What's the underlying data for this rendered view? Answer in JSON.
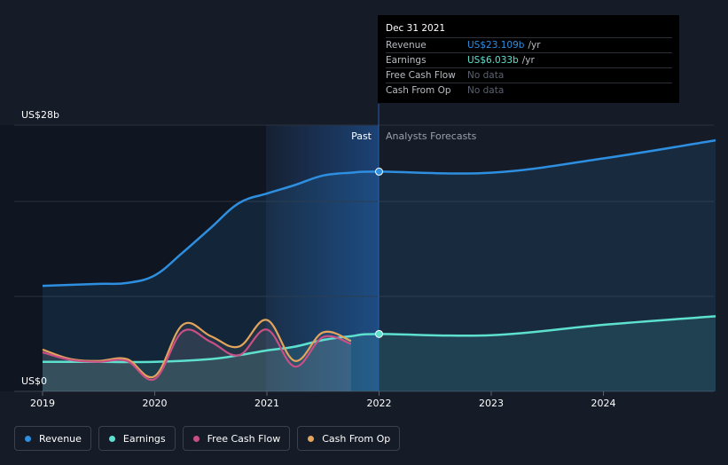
{
  "chart_data": {
    "type": "line",
    "y_unit_label_top": "US$28b",
    "y_unit_label_bottom": "US$0",
    "ylim": [
      0,
      28
    ],
    "x_ticks": [
      "2019",
      "2020",
      "2021",
      "2022",
      "2023",
      "2024"
    ],
    "past_label": "Past",
    "forecast_label": "Analysts Forecasts",
    "highlight_date": "Dec 31 2021",
    "series": [
      {
        "name": "Revenue",
        "color": "#2e8fe0",
        "forecast": true,
        "points": [
          [
            2019.0,
            11.1
          ],
          [
            2019.5,
            11.3
          ],
          [
            2019.75,
            11.4
          ],
          [
            2020.0,
            12.2
          ],
          [
            2020.25,
            14.6
          ],
          [
            2020.5,
            17.2
          ],
          [
            2020.75,
            19.8
          ],
          [
            2021.0,
            20.8
          ],
          [
            2021.25,
            21.7
          ],
          [
            2021.5,
            22.7
          ],
          [
            2021.75,
            23.0
          ],
          [
            2022.0,
            23.109
          ],
          [
            2023.0,
            23.0
          ],
          [
            2024.0,
            24.5
          ],
          [
            2025.0,
            26.4
          ]
        ]
      },
      {
        "name": "Earnings",
        "color": "#5ee0cf",
        "forecast": true,
        "points": [
          [
            2019.0,
            3.1
          ],
          [
            2019.5,
            3.1
          ],
          [
            2020.0,
            3.1
          ],
          [
            2020.5,
            3.4
          ],
          [
            2020.75,
            3.8
          ],
          [
            2021.0,
            4.3
          ],
          [
            2021.25,
            4.7
          ],
          [
            2021.5,
            5.4
          ],
          [
            2021.75,
            5.8
          ],
          [
            2022.0,
            6.033
          ],
          [
            2023.0,
            5.9
          ],
          [
            2024.0,
            7.0
          ],
          [
            2025.0,
            7.9
          ]
        ]
      },
      {
        "name": "Free Cash Flow",
        "color": "#c84f86",
        "forecast": false,
        "points": [
          [
            2019.0,
            4.1
          ],
          [
            2019.25,
            3.3
          ],
          [
            2019.5,
            3.1
          ],
          [
            2019.75,
            3.2
          ],
          [
            2020.0,
            1.3
          ],
          [
            2020.25,
            6.3
          ],
          [
            2020.5,
            5.2
          ],
          [
            2020.75,
            3.8
          ],
          [
            2021.0,
            6.5
          ],
          [
            2021.25,
            2.6
          ],
          [
            2021.5,
            5.7
          ],
          [
            2021.75,
            5.0
          ]
        ]
      },
      {
        "name": "Cash From Op",
        "color": "#e3a45c",
        "forecast": false,
        "points": [
          [
            2019.0,
            4.4
          ],
          [
            2019.25,
            3.4
          ],
          [
            2019.5,
            3.2
          ],
          [
            2019.75,
            3.4
          ],
          [
            2020.0,
            1.6
          ],
          [
            2020.25,
            7.0
          ],
          [
            2020.5,
            5.8
          ],
          [
            2020.75,
            4.7
          ],
          [
            2021.0,
            7.5
          ],
          [
            2021.25,
            3.2
          ],
          [
            2021.5,
            6.2
          ],
          [
            2021.75,
            5.3
          ]
        ]
      }
    ]
  },
  "tooltip": {
    "date": "Dec 31 2021",
    "rows": [
      {
        "label": "Revenue",
        "value": "US$23.109b",
        "unit": "/yr",
        "color": "#2e8fe0"
      },
      {
        "label": "Earnings",
        "value": "US$6.033b",
        "unit": "/yr",
        "color": "#5ee0cf"
      },
      {
        "label": "Free Cash Flow",
        "value": "No data",
        "unit": "",
        "color": "#5b6170"
      },
      {
        "label": "Cash From Op",
        "value": "No data",
        "unit": "",
        "color": "#5b6170"
      }
    ]
  },
  "legend": [
    {
      "label": "Revenue",
      "color": "#2e8fe0"
    },
    {
      "label": "Earnings",
      "color": "#5ee0cf"
    },
    {
      "label": "Free Cash Flow",
      "color": "#c84f86"
    },
    {
      "label": "Cash From Op",
      "color": "#e3a45c"
    }
  ]
}
